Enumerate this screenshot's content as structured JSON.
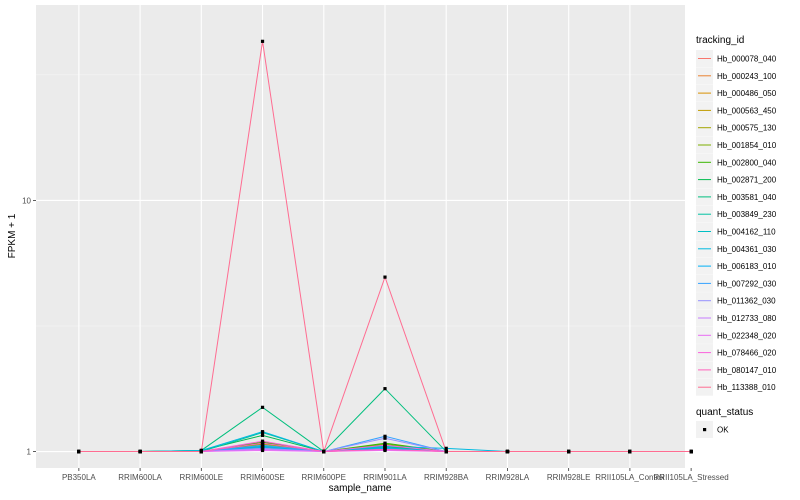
{
  "chart_data": {
    "type": "line",
    "xlabel": "sample_name",
    "ylabel": "FPKM + 1",
    "y_scale": "log",
    "ylim": [
      0.86,
      60
    ],
    "y_ticks": [
      {
        "value": 1,
        "label": "1"
      },
      {
        "value": 10,
        "label": "10"
      }
    ],
    "grid": true,
    "legend_position": "right",
    "categories": [
      "PB350LA",
      "RRIM600LA",
      "RRIM600LE",
      "RRIM600SE",
      "RRIM600PE",
      "RRIM901LA",
      "RRIM928BA",
      "RRIM928LA",
      "RRIM928LE",
      "RRII105LA_Control",
      "RRII105LA_Stressed"
    ],
    "legend_title": "tracking_id",
    "series": [
      {
        "name": "Hb_000078_040",
        "color": "#F8766D",
        "values": [
          1,
          1,
          1,
          1.05,
          1,
          1.03,
          1,
          1,
          1,
          1,
          1
        ]
      },
      {
        "name": "Hb_000243_100",
        "color": "#EA8331",
        "values": [
          1,
          1,
          1,
          1.03,
          1,
          1.02,
          1,
          1,
          1,
          1,
          1
        ]
      },
      {
        "name": "Hb_000486_050",
        "color": "#D89000",
        "values": [
          1,
          1,
          1,
          1.04,
          1,
          1.05,
          1,
          1,
          1,
          1,
          1
        ]
      },
      {
        "name": "Hb_000563_450",
        "color": "#C09B00",
        "values": [
          1,
          1,
          1,
          1.06,
          1,
          1.04,
          1,
          1,
          1,
          1,
          1
        ]
      },
      {
        "name": "Hb_000575_130",
        "color": "#A3A500",
        "values": [
          1,
          1,
          1,
          1.07,
          1,
          1.06,
          1,
          1,
          1,
          1,
          1
        ]
      },
      {
        "name": "Hb_001854_010",
        "color": "#7CAE00",
        "values": [
          1,
          1,
          1,
          1.08,
          1,
          1.07,
          1,
          1,
          1,
          1,
          1
        ]
      },
      {
        "name": "Hb_002800_040",
        "color": "#39B600",
        "values": [
          1,
          1,
          1,
          1.09,
          1,
          1.08,
          1,
          1,
          1,
          1,
          1
        ]
      },
      {
        "name": "Hb_002871_200",
        "color": "#00BB4E",
        "values": [
          1,
          1,
          1.01,
          1.16,
          1,
          1.05,
          1,
          1,
          1,
          1,
          1
        ]
      },
      {
        "name": "Hb_003581_040",
        "color": "#00BF7D",
        "values": [
          1,
          1,
          1.01,
          1.5,
          1,
          1.78,
          1,
          1,
          1,
          1,
          1
        ]
      },
      {
        "name": "Hb_003849_230",
        "color": "#00C1A3",
        "values": [
          1,
          1,
          1,
          1.19,
          1,
          1.06,
          1,
          1,
          1,
          1,
          1
        ]
      },
      {
        "name": "Hb_004162_110",
        "color": "#00BFC4",
        "values": [
          1,
          1,
          1,
          1.05,
          1,
          1.04,
          1,
          1,
          1,
          1,
          1
        ]
      },
      {
        "name": "Hb_004361_030",
        "color": "#00BAE0",
        "values": [
          1,
          1,
          1.01,
          1.2,
          1,
          1.05,
          1.03,
          1,
          1,
          1,
          1
        ]
      },
      {
        "name": "Hb_006183_010",
        "color": "#00B0F6",
        "values": [
          1,
          1,
          1,
          1.04,
          1,
          1.03,
          1,
          1,
          1,
          1,
          1
        ]
      },
      {
        "name": "Hb_007292_030",
        "color": "#35A2FF",
        "values": [
          1,
          1,
          1,
          1.06,
          1,
          1.15,
          1,
          1,
          1,
          1,
          1
        ]
      },
      {
        "name": "Hb_011362_030",
        "color": "#9590FF",
        "values": [
          1,
          1,
          1,
          1.03,
          1,
          1.13,
          1,
          1,
          1,
          1,
          1
        ]
      },
      {
        "name": "Hb_012733_080",
        "color": "#C77CFF",
        "values": [
          1,
          1,
          1,
          1.02,
          1,
          1.02,
          1,
          1,
          1,
          1,
          1
        ]
      },
      {
        "name": "Hb_022348_020",
        "color": "#E76BF3",
        "values": [
          1,
          1,
          1,
          1.01,
          1,
          1.01,
          1,
          1,
          1,
          1,
          1
        ]
      },
      {
        "name": "Hb_078466_020",
        "color": "#FA62DB",
        "values": [
          1,
          1,
          1,
          1.1,
          1,
          1.06,
          1,
          1,
          1,
          1,
          1
        ]
      },
      {
        "name": "Hb_080147_010",
        "color": "#FF62BC",
        "values": [
          1,
          1,
          1,
          1.08,
          1,
          1.02,
          1,
          1,
          1,
          1,
          1
        ]
      },
      {
        "name": "Hb_113388_010",
        "color": "#FF6C91",
        "values": [
          1,
          1,
          1,
          43,
          1,
          4.95,
          1,
          1,
          1,
          1,
          1
        ]
      }
    ],
    "shape_legend": {
      "title": "quant_status",
      "items": [
        {
          "label": "OK"
        }
      ]
    },
    "colors": {
      "panel_bg": "#EBEBEB",
      "grid_major": "#FFFFFF",
      "point": "#000000"
    }
  }
}
